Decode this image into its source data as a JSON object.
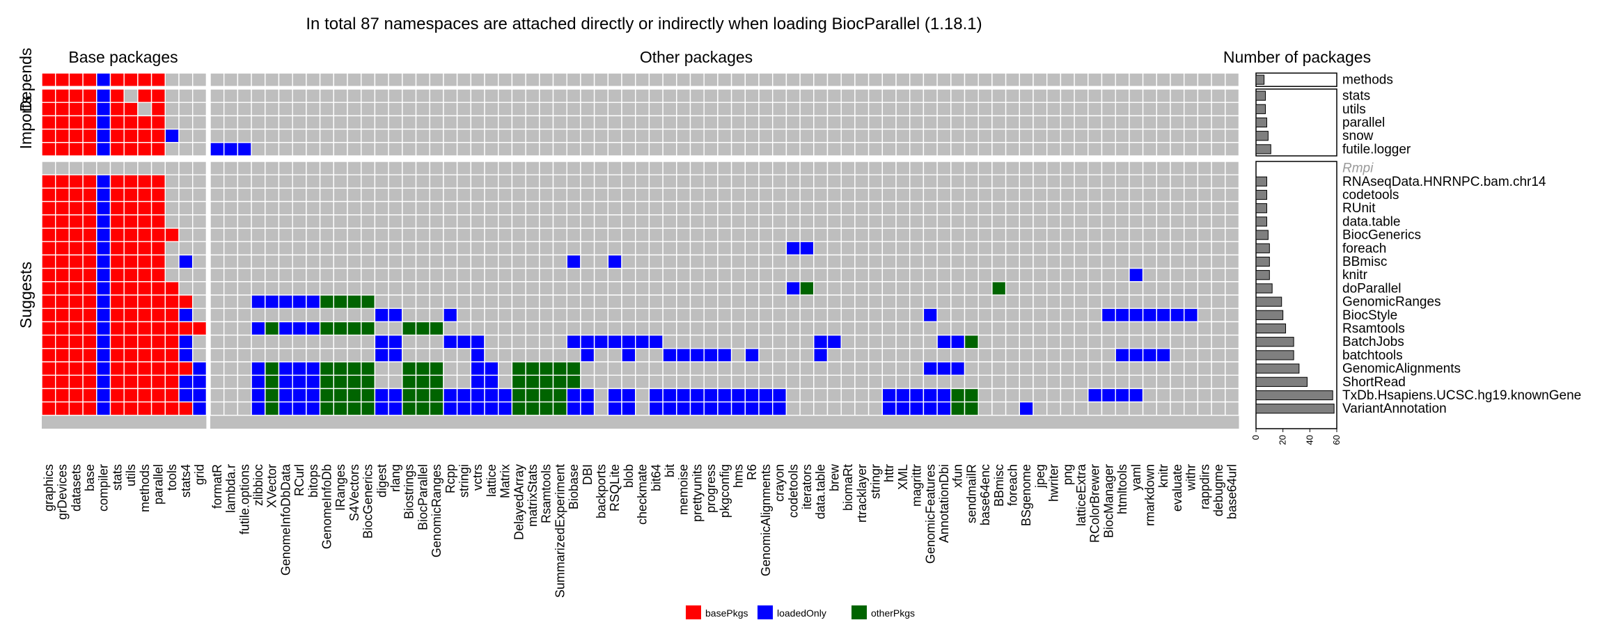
{
  "chart_data": {
    "type": "heatmap",
    "title": "In total 87 namespaces are attached directly or indirectly when loading BiocParallel (1.18.1)",
    "sections": {
      "base": "Base packages",
      "other": "Other packages",
      "count": "Number of packages"
    },
    "groups": [
      {
        "label": "Depends",
        "rows": [
          0
        ]
      },
      {
        "label": "Imports",
        "rows": [
          1,
          2,
          3,
          4,
          5
        ]
      },
      {
        "label": "Suggests",
        "rows": [
          6,
          7,
          8,
          9,
          10,
          11,
          12,
          13,
          14,
          15,
          16,
          17,
          18,
          19,
          20,
          21,
          22,
          23,
          24,
          25
        ]
      }
    ],
    "rows": [
      {
        "name": "methods",
        "count": 6,
        "muted": false
      },
      {
        "name": "stats",
        "count": 7,
        "muted": false
      },
      {
        "name": "utils",
        "count": 7,
        "muted": false
      },
      {
        "name": "parallel",
        "count": 8,
        "muted": false
      },
      {
        "name": "snow",
        "count": 9,
        "muted": false
      },
      {
        "name": "futile.logger",
        "count": 11,
        "muted": false
      },
      {
        "name": "Rmpi",
        "count": 0,
        "muted": true
      },
      {
        "name": "RNAseqData.HNRNPC.bam.chr14",
        "count": 8,
        "muted": false
      },
      {
        "name": "codetools",
        "count": 8,
        "muted": false
      },
      {
        "name": "RUnit",
        "count": 8,
        "muted": false
      },
      {
        "name": "data.table",
        "count": 8,
        "muted": false
      },
      {
        "name": "BiocGenerics",
        "count": 9,
        "muted": false
      },
      {
        "name": "foreach",
        "count": 10,
        "muted": false
      },
      {
        "name": "BBmisc",
        "count": 10,
        "muted": false
      },
      {
        "name": "knitr",
        "count": 10,
        "muted": false
      },
      {
        "name": "doParallel",
        "count": 12,
        "muted": false
      },
      {
        "name": "GenomicRanges",
        "count": 19,
        "muted": false
      },
      {
        "name": "BiocStyle",
        "count": 20,
        "muted": false
      },
      {
        "name": "Rsamtools",
        "count": 22,
        "muted": false
      },
      {
        "name": "BatchJobs",
        "count": 28,
        "muted": false
      },
      {
        "name": "batchtools",
        "count": 28,
        "muted": false
      },
      {
        "name": "GenomicAlignments",
        "count": 32,
        "muted": false
      },
      {
        "name": "ShortRead",
        "count": 38,
        "muted": false
      },
      {
        "name": "TxDb.Hsapiens.UCSC.hg19.knownGene",
        "count": 57,
        "muted": false
      },
      {
        "name": "VariantAnnotation",
        "count": 58,
        "muted": false
      }
    ],
    "columns_base": [
      "graphics",
      "grDevices",
      "datasets",
      "base",
      "compiler",
      "stats",
      "utils",
      "methods",
      "parallel",
      "tools",
      "stats4",
      "grid"
    ],
    "columns_other": [
      "formatR",
      "lambda.r",
      "futile.options",
      "zlibbioc",
      "XVector",
      "GenomeInfoDbData",
      "RCurl",
      "bitops",
      "GenomeInfoDb",
      "IRanges",
      "S4Vectors",
      "BiocGenerics",
      "digest",
      "rlang",
      "Biostrings",
      "BiocParallel",
      "GenomicRanges",
      "Rcpp",
      "stringi",
      "vctrs",
      "lattice",
      "Matrix",
      "DelayedArray",
      "matrixStats",
      "Rsamtools",
      "SummarizedExperiment",
      "Biobase",
      "DBI",
      "backports",
      "RSQLite",
      "blob",
      "checkmate",
      "bit64",
      "bit",
      "memoise",
      "prettyunits",
      "progress",
      "pkgconfig",
      "hms",
      "R6",
      "GenomicAlignments",
      "crayon",
      "codetools",
      "iterators",
      "data.table",
      "brew",
      "biomaRt",
      "rtracklayer",
      "stringr",
      "httr",
      "XML",
      "magrittr",
      "GenomicFeatures",
      "AnnotationDbi",
      "xfun",
      "sendmailR",
      "base64enc",
      "BBmisc",
      "foreach",
      "BSgenome",
      "jpeg",
      "hwriter",
      "png",
      "latticeExtra",
      "RColorBrewer",
      "BiocManager",
      "htmltools",
      "yaml",
      "rmarkdown",
      "knitr",
      "evaluate",
      "withr",
      "rappdirs",
      "debugme",
      "base64url"
    ],
    "cells_base": [
      "RRRRBRRRR...",
      "RRRRBR.RR...",
      "RRRRBRR.R...",
      "RRRRBRRRR...",
      "RRRRBRRRRB..",
      "RRRRBRRRR...",
      "............",
      "RRRRBRRRR...",
      "RRRRBRRRR...",
      "RRRRBRRRR...",
      "RRRRBRRRR...",
      "RRRRBRRRRR..",
      "RRRRBRRRR...",
      "RRRRBRRRR.B.",
      "RRRRBRRRR...",
      "RRRRBRRRRR..",
      "RRRRBRRRRRR.",
      "RRRRBRRRRRB.",
      "RRRRBRRRRRRR",
      "RRRRBRRRRRB.",
      "RRRRBRRRRRB.",
      "RRRRBRRRRRRB",
      "RRRRBRRRRRBB",
      "RRRRBRRRRRBB",
      "RRRRBRRRRRRB"
    ],
    "cells_other": [
      "...........................................................................",
      "...........................................................................",
      "...........................................................................",
      "...........................................................................",
      "...........................................................................",
      "BBB........................................................................",
      "...........................................................................",
      "...........................................................................",
      "...........................................................................",
      "...........................................................................",
      "...........................................................................",
      "...........................................................................",
      "..........................................BB...............................",
      "..........................B..B.............................................",
      "...................................................................B.......",
      "..........................................BG.............G.................",
      "...BBBBBGGGG...............................................................",
      "............BB...B..................................B............BBBBBBB....",
      "...BGBBBGGGG..GGG..........................................................",
      "............BB...BBB......BBBBBBB...........BB.......BBG..................",
      "............BB.....B.......B..B..BBBBB.B....B.....................BBBB",
      "...BGBBBGGGG..GGG..BB.GGGGG.........................BBB....................",
      "...BGBBBGGGG..GGG..BB.GGGGG...........................................",
      "...BGBBBGGGGBBGGGBBBBBGGGGBB.BB.BBBBBBBBBB.......BBBBBGG........BBBB..........",
      "...BGBBBGGGGBBGGGBBBBBGGGGBB.BB.BBBBBBBBBB.......BBBBBGG...B................."
    ],
    "colors": {
      "R": "#FF0000",
      "B": "#0000FF",
      "G": "#006400",
      "empty": "#BEBEBE"
    },
    "legend": [
      {
        "key": "R",
        "label": "basePkgs"
      },
      {
        "key": "B",
        "label": "loadedOnly"
      },
      {
        "key": "G",
        "label": "otherPkgs"
      }
    ],
    "bar_axis": {
      "ticks": [
        0,
        20,
        40,
        60
      ],
      "xlim": [
        0,
        60
      ]
    }
  }
}
